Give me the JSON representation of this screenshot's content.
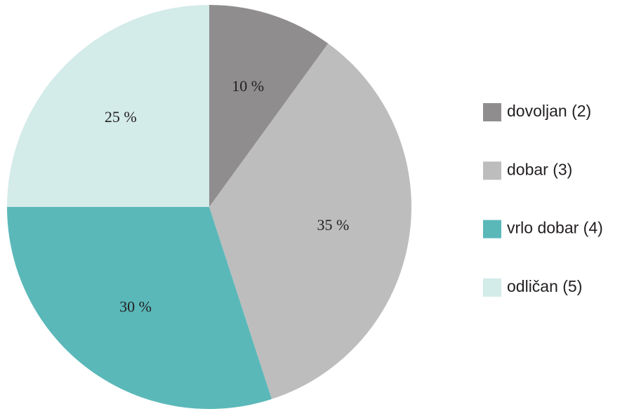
{
  "chart_data": {
    "type": "pie",
    "categories": [
      "dovoljan (2)",
      "dobar (3)",
      "vrlo dobar (4)",
      "odličan (5)"
    ],
    "values": [
      10,
      35,
      30,
      25
    ],
    "value_labels": [
      "10 %",
      "35 %",
      "30 %",
      "25 %"
    ],
    "colors": [
      "#8f8d8e",
      "#bdbdbd",
      "#5bb8b9",
      "#d3ebe9"
    ],
    "legend": "right"
  }
}
